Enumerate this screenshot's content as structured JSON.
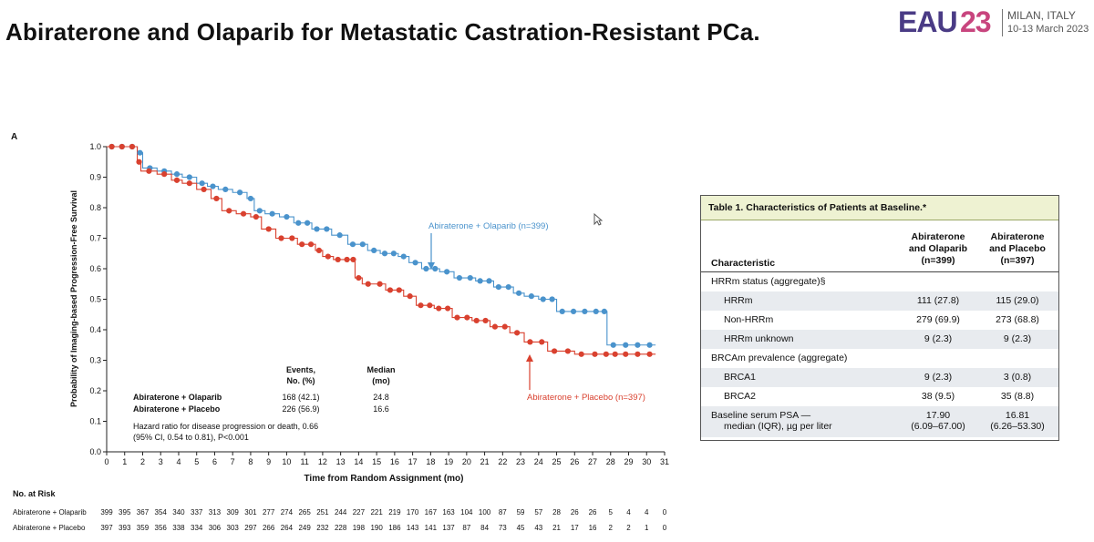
{
  "slide": {
    "title": "Abiraterone and Olaparib for Metastatic Castration-Resistant PCa.",
    "logo_eau": "EAU",
    "logo_number": "23",
    "logo_city": "MILAN, ITALY",
    "logo_dates": "10-13 March 2023",
    "panel_letter": "A",
    "colors": {
      "olaparib": "#4a93cc",
      "placebo": "#d9412f",
      "logo_purple": "#4a3b85",
      "logo_pink": "#c8457e",
      "table_header_bg": "#eef2d2"
    }
  },
  "chart_data": {
    "type": "line",
    "subtype": "kaplan-meier",
    "xlabel": "Time from Random Assignment (mo)",
    "ylabel": "Probability of Imaging-based Progression-Free Survival",
    "xlim": [
      0,
      31
    ],
    "ylim": [
      0,
      1.0
    ],
    "x_ticks": [
      "0",
      "1",
      "2",
      "3",
      "4",
      "5",
      "6",
      "7",
      "8",
      "9",
      "10",
      "11",
      "12",
      "13",
      "14",
      "15",
      "16",
      "17",
      "18",
      "19",
      "20",
      "21",
      "22",
      "23",
      "24",
      "25",
      "26",
      "27",
      "28",
      "29",
      "30",
      "31"
    ],
    "y_ticks": [
      "0.0",
      "0.1",
      "0.2",
      "0.3",
      "0.4",
      "0.5",
      "0.6",
      "0.7",
      "0.8",
      "0.9",
      "1.0"
    ],
    "grid": false,
    "series": [
      {
        "name": "Abiraterone + Olaparib (n=399)",
        "color": "#4a93cc",
        "x": [
          0,
          1.7,
          2.0,
          2.8,
          3.6,
          4.2,
          5.0,
          5.6,
          6.2,
          7.0,
          7.8,
          8.2,
          8.8,
          9.6,
          10.4,
          11.4,
          12.5,
          13.4,
          14.5,
          15.2,
          16.2,
          16.8,
          17.5,
          18.5,
          19.3,
          20.5,
          21.5,
          22.6,
          23.2,
          24.0,
          25.0,
          27.5,
          27.8,
          28.5,
          30.5
        ],
        "y": [
          1.0,
          0.98,
          0.93,
          0.92,
          0.91,
          0.9,
          0.88,
          0.87,
          0.86,
          0.85,
          0.83,
          0.79,
          0.78,
          0.77,
          0.75,
          0.73,
          0.71,
          0.68,
          0.66,
          0.65,
          0.64,
          0.62,
          0.6,
          0.59,
          0.57,
          0.56,
          0.54,
          0.52,
          0.51,
          0.5,
          0.46,
          0.46,
          0.35,
          0.35,
          0.35
        ]
      },
      {
        "name": "Abiraterone + Placebo (n=397)",
        "color": "#d9412f",
        "x": [
          0,
          1.7,
          1.9,
          2.8,
          3.6,
          4.2,
          5.0,
          5.8,
          6.4,
          7.2,
          8.0,
          8.6,
          9.4,
          10.6,
          11.6,
          12.0,
          12.6,
          13.6,
          13.8,
          14.2,
          15.5,
          16.5,
          17.2,
          18.2,
          19.2,
          20.3,
          21.3,
          22.4,
          23.2,
          24.5,
          26.0,
          27.5,
          28.5,
          30.5
        ],
        "y": [
          1.0,
          0.95,
          0.92,
          0.91,
          0.89,
          0.88,
          0.86,
          0.83,
          0.79,
          0.78,
          0.77,
          0.73,
          0.7,
          0.68,
          0.66,
          0.64,
          0.63,
          0.63,
          0.57,
          0.55,
          0.53,
          0.51,
          0.48,
          0.47,
          0.44,
          0.43,
          0.41,
          0.39,
          0.36,
          0.33,
          0.32,
          0.32,
          0.32,
          0.32
        ]
      }
    ],
    "annotations": {
      "olaparib_label": "Abiraterone + Olaparib (n=399)",
      "placebo_label": "Abiraterone + Placebo (n=397)",
      "events_header_line1": "Events,",
      "events_header_line2": "No. (%)",
      "median_header_line1": "Median",
      "median_header_line2": "(mo)",
      "row1_name": "Abiraterone + Olaparib",
      "row1_events": "168 (42.1)",
      "row1_median": "24.8",
      "row2_name": "Abiraterone + Placebo",
      "row2_events": "226 (56.9)",
      "row2_median": "16.6",
      "hr_line1": "Hazard ratio for disease progression or death, 0.66",
      "hr_line2": "(95% CI, 0.54 to 0.81), P<0.001"
    },
    "at_risk": {
      "title": "No. at Risk",
      "rows": [
        {
          "name": "Abiraterone + Olaparib",
          "values": [
            "399",
            "395",
            "367",
            "354",
            "340",
            "337",
            "313",
            "309",
            "301",
            "277",
            "274",
            "265",
            "251",
            "244",
            "227",
            "221",
            "219",
            "170",
            "167",
            "163",
            "104",
            "100",
            "87",
            "59",
            "57",
            "28",
            "26",
            "26",
            "5",
            "4",
            "4",
            "0"
          ]
        },
        {
          "name": "Abiraterone + Placebo",
          "values": [
            "397",
            "393",
            "359",
            "356",
            "338",
            "334",
            "306",
            "303",
            "297",
            "266",
            "264",
            "249",
            "232",
            "228",
            "198",
            "190",
            "186",
            "143",
            "141",
            "137",
            "87",
            "84",
            "73",
            "45",
            "43",
            "21",
            "17",
            "16",
            "2",
            "2",
            "1",
            "0"
          ]
        }
      ]
    }
  },
  "table": {
    "title": "Table 1. Characteristics of Patients at Baseline.*",
    "col_characteristic": "Characteristic",
    "col1_line1": "Abiraterone",
    "col1_line2": "and Olaparib",
    "col1_line3": "(n=399)",
    "col2_line1": "Abiraterone",
    "col2_line2": "and Placebo",
    "col2_line3": "(n=397)",
    "rows": [
      {
        "label": "HRRm status (aggregate)§",
        "v1": "",
        "v2": ""
      },
      {
        "label": "HRRm",
        "v1": "111 (27.8)",
        "v2": "115 (29.0)"
      },
      {
        "label": "Non-HRRm",
        "v1": "279 (69.9)",
        "v2": "273 (68.8)"
      },
      {
        "label": "HRRm unknown",
        "v1": "9 (2.3)",
        "v2": "9 (2.3)"
      },
      {
        "label": "BRCAm prevalence (aggregate)",
        "v1": "",
        "v2": ""
      },
      {
        "label": "BRCA1",
        "v1": "9 (2.3)",
        "v2": "3 (0.8)"
      },
      {
        "label": "BRCA2",
        "v1": "38 (9.5)",
        "v2": "35 (8.8)"
      },
      {
        "label": "Baseline serum PSA —",
        "label2": "median (IQR), µg per liter",
        "v1": "17.90",
        "v1b": "(6.09–67.00)",
        "v2": "16.81",
        "v2b": "(6.26–53.30)"
      }
    ]
  }
}
